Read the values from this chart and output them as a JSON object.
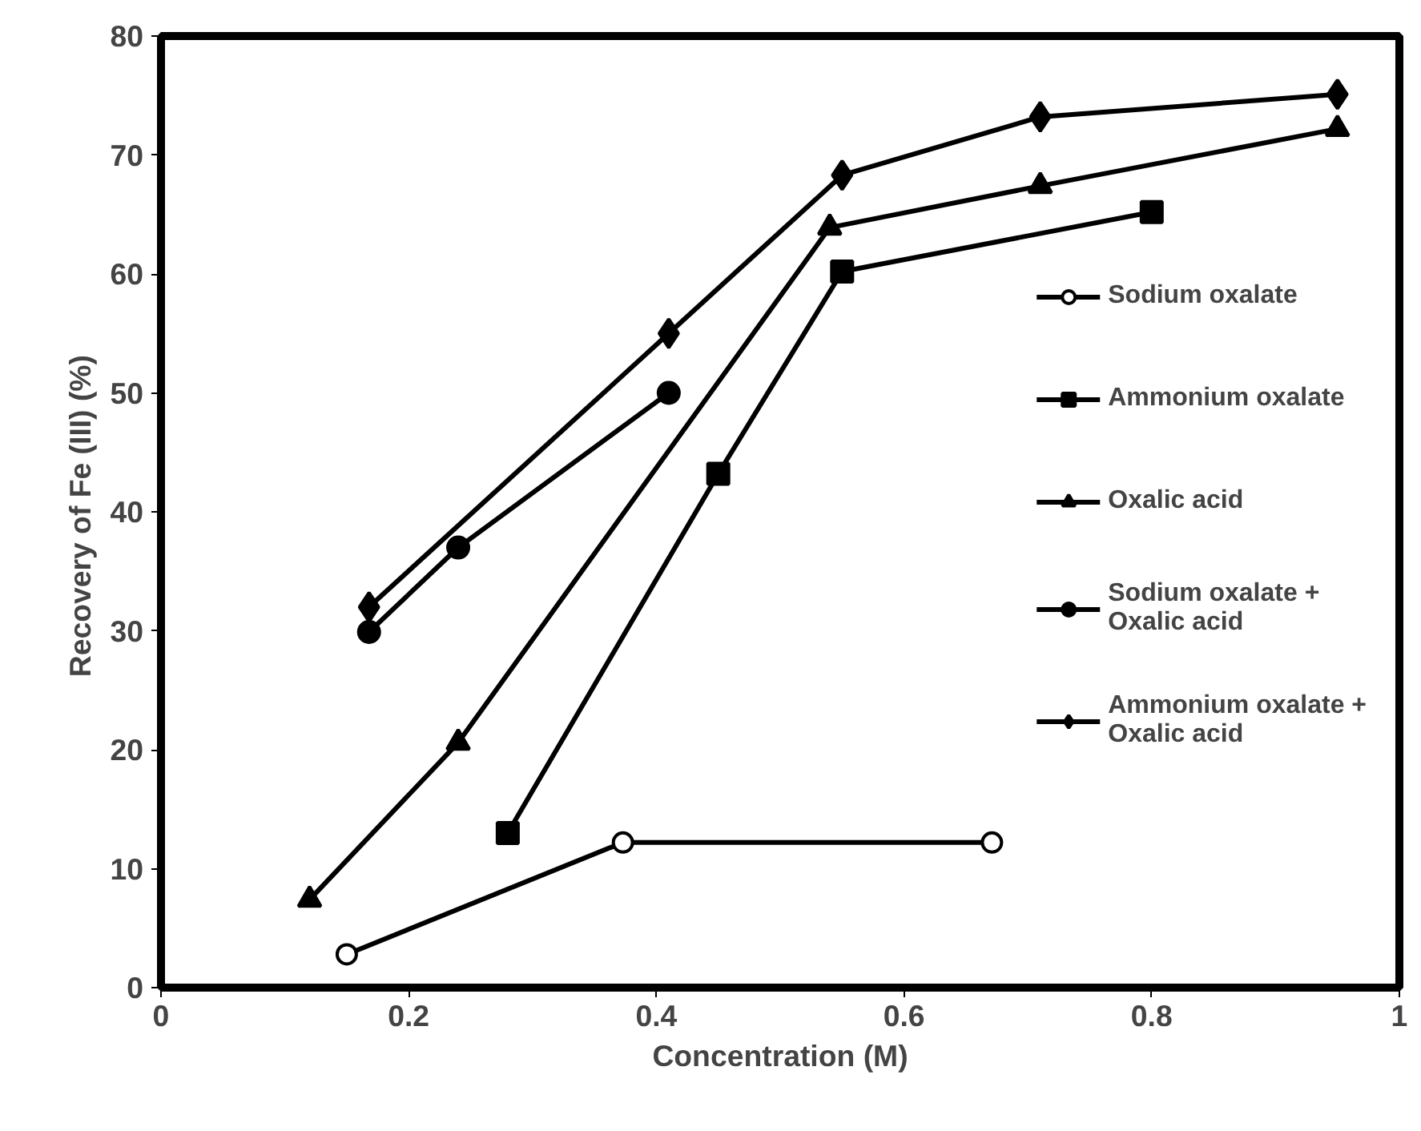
{
  "chart_data": {
    "type": "line",
    "xlabel": "Concentration (M)",
    "ylabel": "Recovery of Fe (III)  (%)",
    "xlim": [
      0,
      1
    ],
    "xticks": [
      0,
      0.2,
      0.4,
      0.6,
      0.8,
      1
    ],
    "ylim": [
      0,
      80
    ],
    "yticks": [
      0,
      10,
      20,
      30,
      40,
      50,
      60,
      70,
      80
    ],
    "grid": false,
    "legend": "right",
    "series": [
      {
        "name": "Sodium oxalate",
        "color": "#000000",
        "marker": "circle_open",
        "x": [
          0.15,
          0.373,
          0.671
        ],
        "values": [
          2.8,
          12.2,
          12.2
        ]
      },
      {
        "name": "Ammonium oxalate",
        "color": "#000000",
        "marker": "square",
        "x": [
          0.28,
          0.45,
          0.55,
          0.8
        ],
        "values": [
          13,
          43.2,
          60.2,
          65.2
        ]
      },
      {
        "name": "Oxalic acid",
        "color": "#000000",
        "marker": "triangle",
        "x": [
          0.12,
          0.24,
          0.54,
          0.71,
          0.95
        ],
        "values": [
          7.4,
          20.6,
          63.9,
          67.4,
          72.2
        ]
      },
      {
        "name": "Sodium oxalate +\nOxalic acid",
        "color": "#000000",
        "marker": "circle",
        "x": [
          0.168,
          0.24,
          0.41
        ],
        "values": [
          29.9,
          37,
          50
        ]
      },
      {
        "name": "Ammonium oxalate +\nOxalic acid",
        "color": "#000000",
        "marker": "diamond",
        "x": [
          0.168,
          0.41,
          0.55,
          0.71,
          0.95
        ],
        "values": [
          32,
          55,
          68.3,
          73.2,
          75.1
        ]
      }
    ]
  }
}
